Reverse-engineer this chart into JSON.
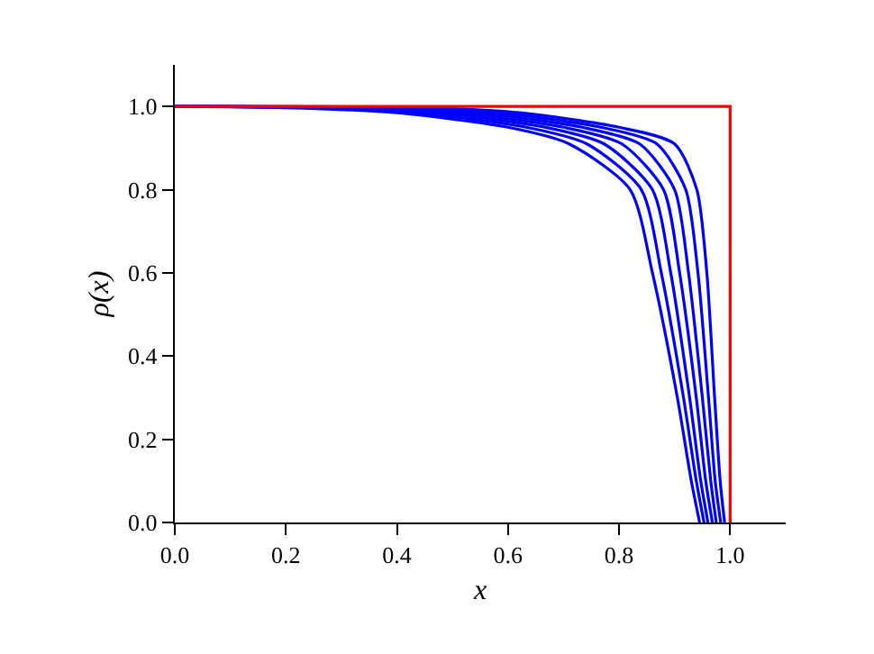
{
  "chart_data": {
    "type": "line",
    "xlabel": "x",
    "ylabel": "ρ(x)",
    "xlim": [
      0,
      1.1
    ],
    "ylim": [
      0,
      1.1
    ],
    "xticks": [
      {
        "value": 0,
        "label": "0.0"
      },
      0.2,
      0.4,
      0.6,
      0.8,
      {
        "value": 1,
        "label": "1.0"
      }
    ],
    "yticks": [
      {
        "value": 0,
        "label": "0.0"
      },
      0.2,
      0.4,
      0.6,
      0.8,
      {
        "value": 1,
        "label": "1.0"
      }
    ],
    "marker": "none",
    "line_style": "solid",
    "series": [
      {
        "color": "#0000ff",
        "x": [
          0,
          0.2,
          0.4,
          0.6,
          0.71,
          0.82,
          0.86,
          0.905,
          0.93,
          0.945
        ],
        "values": [
          1,
          0.997,
          0.985,
          0.95,
          0.91,
          0.8,
          0.6,
          0.3,
          0.1,
          0
        ]
      },
      {
        "color": "#0000ff",
        "x": [
          0,
          0.242,
          0.437,
          0.633,
          0.742,
          0.84,
          0.876,
          0.916,
          0.939,
          0.953
        ],
        "values": [
          1,
          0.997,
          0.985,
          0.95,
          0.91,
          0.8,
          0.6,
          0.3,
          0.1,
          0
        ]
      },
      {
        "color": "#0000ff",
        "x": [
          0,
          0.283,
          0.473,
          0.667,
          0.773,
          0.86,
          0.893,
          0.927,
          0.947,
          0.96
        ],
        "values": [
          1,
          0.997,
          0.985,
          0.95,
          0.91,
          0.8,
          0.6,
          0.3,
          0.1,
          0
        ]
      },
      {
        "color": "#0000ff",
        "x": [
          0,
          0.325,
          0.51,
          0.7,
          0.805,
          0.88,
          0.909,
          0.939,
          0.956,
          0.968
        ],
        "values": [
          1,
          0.997,
          0.985,
          0.95,
          0.91,
          0.8,
          0.6,
          0.3,
          0.1,
          0
        ]
      },
      {
        "color": "#0000ff",
        "x": [
          0,
          0.367,
          0.547,
          0.733,
          0.837,
          0.9,
          0.925,
          0.95,
          0.965,
          0.975
        ],
        "values": [
          1,
          0.997,
          0.985,
          0.95,
          0.91,
          0.8,
          0.6,
          0.3,
          0.1,
          0
        ]
      },
      {
        "color": "#0000ff",
        "x": [
          0,
          0.408,
          0.583,
          0.767,
          0.868,
          0.92,
          0.942,
          0.961,
          0.973,
          0.983
        ],
        "values": [
          1,
          0.997,
          0.985,
          0.95,
          0.91,
          0.8,
          0.6,
          0.3,
          0.1,
          0
        ]
      },
      {
        "color": "#0000ff",
        "x": [
          0,
          0.45,
          0.62,
          0.8,
          0.9,
          0.94,
          0.958,
          0.972,
          0.982,
          0.99
        ],
        "values": [
          1,
          0.997,
          0.985,
          0.95,
          0.91,
          0.8,
          0.6,
          0.3,
          0.1,
          0
        ]
      },
      {
        "color": "#ff0000",
        "x": [
          0,
          1,
          1
        ],
        "values": [
          1,
          1,
          0
        ]
      }
    ]
  }
}
